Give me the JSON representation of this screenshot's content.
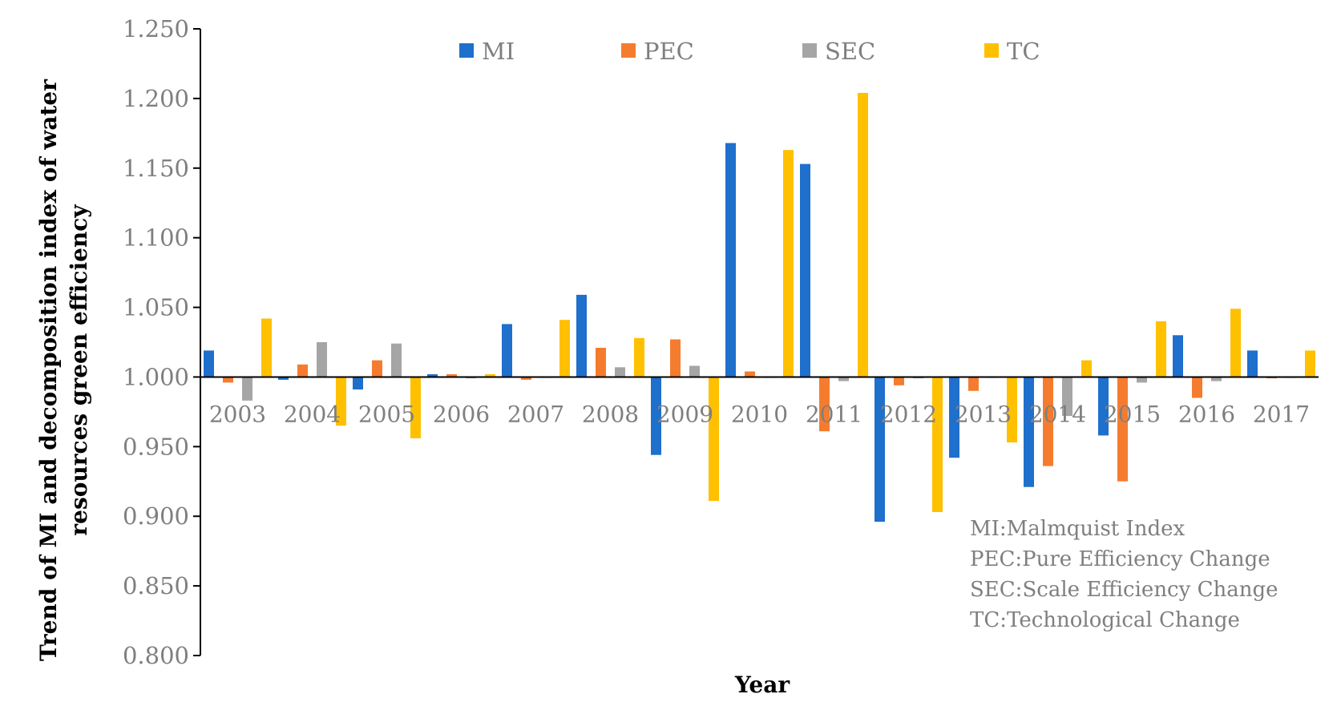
{
  "chart_data": {
    "type": "bar",
    "title": "",
    "xlabel": "Year",
    "ylabel_lines": [
      "Trend of MI and decomposition index of water",
      "resources green efficiency"
    ],
    "ylim": [
      0.8,
      1.25
    ],
    "baseline": 1.0,
    "ytick_step": 0.05,
    "ytick_labels": [
      "0.800",
      "0.850",
      "0.900",
      "0.950",
      "1.000",
      "1.050",
      "1.100",
      "1.150",
      "1.200",
      "1.250"
    ],
    "categories": [
      "2003",
      "2004",
      "2005",
      "2006",
      "2007",
      "2008",
      "2009",
      "2010",
      "2011",
      "2012",
      "2013",
      "2014",
      "2015",
      "2016",
      "2017"
    ],
    "series": [
      {
        "name": "MI",
        "color": "#1f6fcc",
        "values": [
          1.019,
          0.998,
          0.991,
          1.002,
          1.038,
          1.059,
          0.944,
          1.168,
          1.153,
          0.896,
          0.942,
          0.921,
          0.958,
          1.03,
          1.019
        ]
      },
      {
        "name": "PEC",
        "color": "#f57c2e",
        "values": [
          0.996,
          1.009,
          1.012,
          1.002,
          0.998,
          1.021,
          1.027,
          1.004,
          0.961,
          0.994,
          0.99,
          0.936,
          0.925,
          0.985,
          0.999
        ]
      },
      {
        "name": "SEC",
        "color": "#a5a5a5",
        "values": [
          0.983,
          1.025,
          1.024,
          0.999,
          1.0,
          1.007,
          1.008,
          1.0,
          0.997,
          0.999,
          1.0,
          0.972,
          0.996,
          0.997,
          1.0
        ]
      },
      {
        "name": "TC",
        "color": "#ffc000",
        "values": [
          1.042,
          0.965,
          0.956,
          1.002,
          1.041,
          1.028,
          0.911,
          1.163,
          1.204,
          0.903,
          0.953,
          1.012,
          1.04,
          1.049,
          1.019
        ]
      }
    ],
    "legend_position": "top",
    "annotations": [
      "MI:Malmquist Index",
      "PEC:Pure Efficiency Change",
      "SEC:Scale Efficiency Change",
      "TC:Technological Change"
    ]
  }
}
